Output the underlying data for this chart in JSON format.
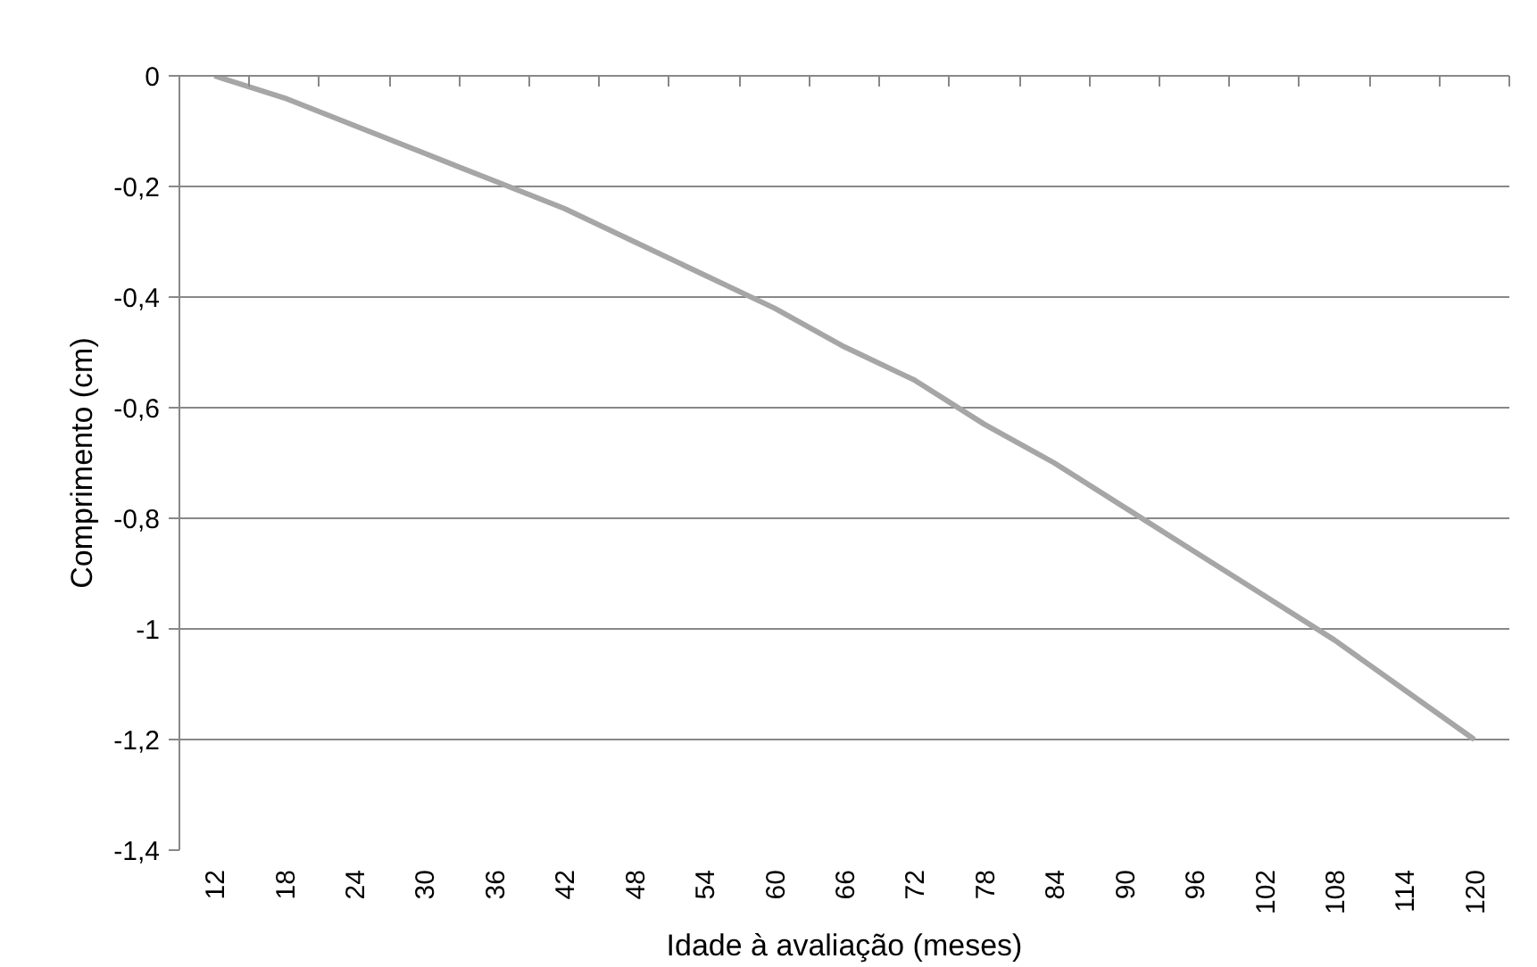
{
  "chart_data": {
    "type": "line",
    "xlabel": "Idade à avaliação (meses)",
    "ylabel": "Comprimento (cm)",
    "categories": [
      "12",
      "18",
      "24",
      "30",
      "36",
      "42",
      "48",
      "54",
      "60",
      "66",
      "72",
      "78",
      "84",
      "90",
      "96",
      "102",
      "108",
      "114",
      "120"
    ],
    "series": [
      {
        "color": "#a6a6a6",
        "values": [
          0,
          -0.04,
          -0.09,
          -0.14,
          -0.19,
          -0.24,
          -0.3,
          -0.36,
          -0.42,
          -0.49,
          -0.55,
          -0.63,
          -0.7,
          -0.78,
          -0.86,
          -0.94,
          -1.02,
          -1.11,
          -1.2
        ]
      }
    ],
    "ylim": [
      -1.4,
      0
    ],
    "yticks": [
      {
        "value": 0,
        "label": "0"
      },
      {
        "value": -0.2,
        "label": "-0,2"
      },
      {
        "value": -0.4,
        "label": "-0,4"
      },
      {
        "value": -0.6,
        "label": "-0,6"
      },
      {
        "value": -0.8,
        "label": "-0,8"
      },
      {
        "value": -1,
        "label": "-1"
      },
      {
        "value": -1.2,
        "label": "-1,2"
      },
      {
        "value": -1.4,
        "label": "-1,4"
      }
    ],
    "grid": "y",
    "marker": "none",
    "line_style": "solid"
  }
}
